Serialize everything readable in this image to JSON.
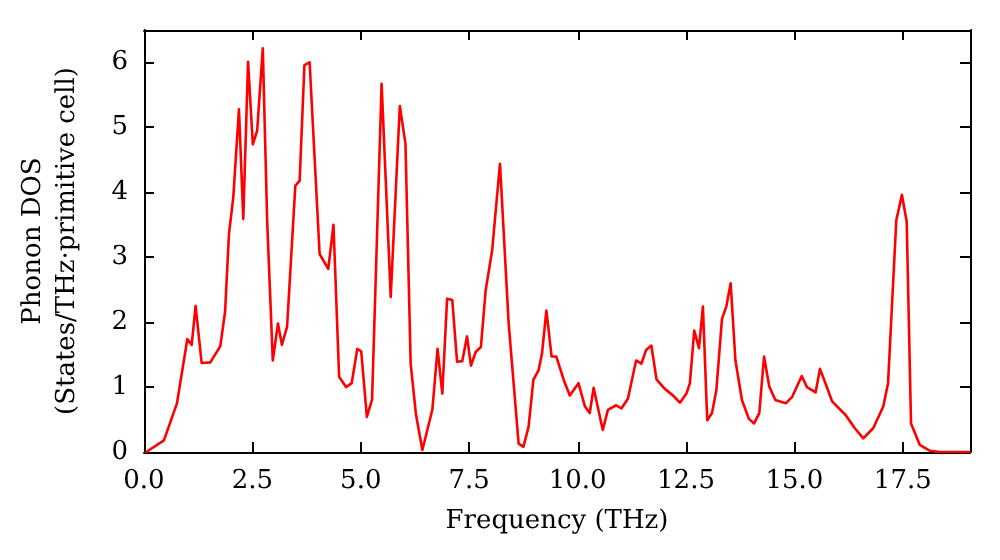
{
  "chart_data": {
    "type": "line",
    "xlabel": "Frequency (THz)",
    "ylabel": "Phonon DOS\n(States/THz·primitive cell)",
    "xlim": [
      0,
      19.05
    ],
    "ylim": [
      0,
      6.5
    ],
    "xticks": [
      {
        "value": 0,
        "label": "0.0"
      },
      {
        "value": 2.5,
        "label": "2.5"
      },
      {
        "value": 5,
        "label": "5.0"
      },
      {
        "value": 7.5,
        "label": "7.5"
      },
      {
        "value": 10,
        "label": "10.0"
      },
      {
        "value": 12.5,
        "label": "12.5"
      },
      {
        "value": 15,
        "label": "15.0"
      },
      {
        "value": 17.5,
        "label": "17.5"
      }
    ],
    "yticks": [
      0,
      1,
      2,
      3,
      4,
      5,
      6
    ],
    "grid": false,
    "marker": "none",
    "line_style": "solid",
    "series": [
      {
        "color": "#ff0000",
        "x": [
          0.05,
          0.46,
          0.76,
          1.0,
          1.1,
          1.19,
          1.33,
          1.53,
          1.76,
          1.87,
          1.96,
          2.06,
          2.19,
          2.29,
          2.4,
          2.51,
          2.61,
          2.74,
          2.84,
          2.97,
          3.09,
          3.18,
          3.3,
          3.49,
          3.59,
          3.7,
          3.82,
          4.05,
          4.25,
          4.37,
          4.5,
          4.66,
          4.79,
          4.92,
          5.01,
          5.14,
          5.26,
          5.48,
          5.69,
          5.9,
          6.03,
          6.15,
          6.27,
          6.42,
          6.65,
          6.77,
          6.88,
          6.99,
          7.11,
          7.22,
          7.34,
          7.45,
          7.54,
          7.65,
          7.77,
          7.88,
          8.03,
          8.21,
          8.41,
          8.64,
          8.75,
          8.87,
          8.98,
          9.1,
          9.18,
          9.28,
          9.4,
          9.51,
          9.68,
          9.82,
          10.02,
          10.17,
          10.28,
          10.37,
          10.58,
          10.7,
          10.89,
          11.01,
          11.16,
          11.35,
          11.47,
          11.58,
          11.7,
          11.82,
          12.0,
          12.2,
          12.36,
          12.51,
          12.59,
          12.69,
          12.8,
          12.89,
          12.99,
          13.1,
          13.2,
          13.33,
          13.43,
          13.53,
          13.64,
          13.79,
          13.95,
          14.07,
          14.19,
          14.3,
          14.42,
          14.56,
          14.8,
          14.95,
          15.17,
          15.29,
          15.49,
          15.59,
          15.72,
          15.87,
          16.18,
          16.39,
          16.59,
          16.82,
          17.05,
          17.16,
          17.35,
          17.48,
          17.59,
          17.69,
          17.89,
          18.12,
          18.35,
          19.04
        ],
        "values": [
          0,
          0.18,
          0.75,
          1.74,
          1.65,
          2.25,
          1.37,
          1.38,
          1.63,
          2.16,
          3.36,
          3.93,
          5.28,
          3.59,
          6.01,
          4.74,
          4.95,
          6.22,
          3.57,
          1.41,
          1.98,
          1.65,
          1.93,
          4.1,
          4.18,
          5.96,
          6.0,
          3.05,
          2.82,
          3.5,
          1.16,
          1.0,
          1.06,
          1.59,
          1.55,
          0.54,
          0.81,
          5.67,
          2.39,
          5.33,
          4.75,
          1.36,
          0.59,
          0.03,
          0.65,
          1.59,
          0.9,
          2.36,
          2.34,
          1.39,
          1.4,
          1.78,
          1.33,
          1.54,
          1.62,
          2.49,
          3.11,
          4.44,
          1.98,
          0.13,
          0.08,
          0.39,
          1.11,
          1.26,
          1.52,
          2.18,
          1.47,
          1.47,
          1.11,
          0.87,
          1.06,
          0.7,
          0.6,
          0.99,
          0.34,
          0.65,
          0.72,
          0.67,
          0.82,
          1.41,
          1.36,
          1.57,
          1.64,
          1.12,
          0.98,
          0.87,
          0.76,
          0.9,
          1.06,
          1.87,
          1.6,
          2.24,
          0.49,
          0.6,
          0.95,
          2.05,
          2.24,
          2.6,
          1.41,
          0.8,
          0.51,
          0.44,
          0.6,
          1.47,
          1.01,
          0.8,
          0.75,
          0.85,
          1.17,
          1.0,
          0.92,
          1.28,
          1.05,
          0.78,
          0.57,
          0.37,
          0.21,
          0.37,
          0.7,
          1.06,
          3.57,
          3.96,
          3.55,
          0.44,
          0.11,
          0.02,
          0,
          0
        ]
      }
    ]
  }
}
